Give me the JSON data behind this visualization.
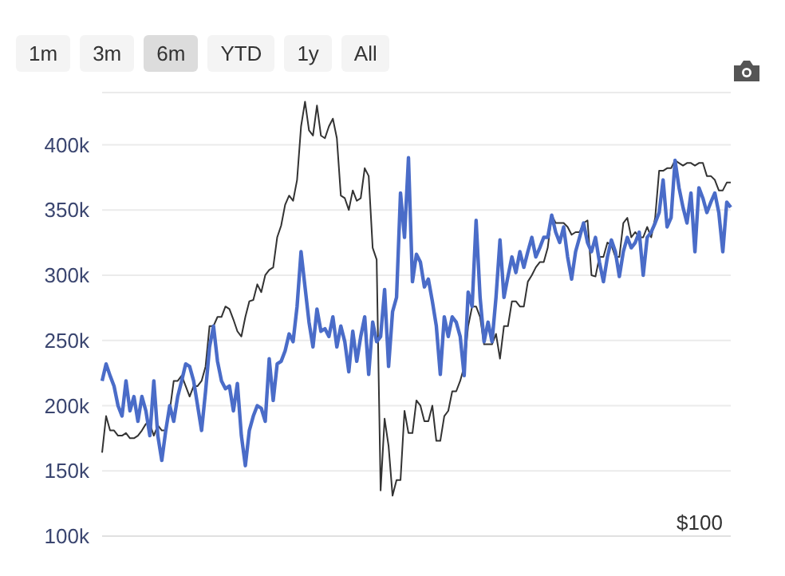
{
  "chart_data": {
    "type": "line",
    "annotations": [
      "1m",
      "3m",
      "6m",
      "YTD",
      "1y",
      "All",
      "$100"
    ],
    "categories": [
      null,
      null,
      null,
      null,
      null,
      null,
      null,
      null,
      null,
      null,
      null,
      null,
      null,
      null,
      null,
      null,
      null,
      null,
      null,
      null,
      null,
      null,
      null,
      null,
      null,
      null,
      null,
      null,
      null,
      null,
      null,
      null,
      null,
      null,
      null,
      null,
      null,
      null,
      null,
      null,
      null,
      null,
      null,
      null,
      null,
      null,
      null,
      null,
      null,
      null,
      null,
      null,
      null,
      null,
      null,
      null,
      null,
      null,
      null,
      null,
      null,
      null,
      null,
      null,
      null,
      null,
      null,
      null,
      null,
      null,
      null,
      null,
      null,
      null,
      null,
      null,
      null,
      null,
      null,
      null,
      null,
      null,
      null,
      null,
      null,
      null,
      null,
      null,
      null,
      null,
      null,
      null,
      null,
      null,
      null,
      null,
      null,
      null,
      null,
      null,
      null,
      null,
      null,
      null,
      null,
      null,
      null,
      null,
      null,
      null,
      null,
      null,
      null,
      null,
      null,
      null,
      null,
      null,
      null,
      null,
      null,
      null,
      null,
      null,
      null,
      null,
      null,
      null,
      null,
      null,
      null,
      null,
      null,
      null,
      null,
      null,
      null,
      null,
      null,
      null,
      null,
      null,
      null,
      null,
      null,
      null,
      null,
      null,
      null,
      null,
      null,
      null,
      null,
      null,
      null,
      null,
      null,
      null,
      null
    ],
    "tick_labels": "y",
    "grid": "y",
    "legend": false,
    "marker": "none",
    "line_style": "solid",
    "ylim": [
      100000,
      440000
    ],
    "yticks": [
      {
        "value": 100000,
        "label": "100k"
      },
      {
        "value": 150000,
        "label": "150k"
      },
      {
        "value": 200000,
        "label": "200k"
      },
      {
        "value": 250000,
        "label": "250k"
      },
      {
        "value": 300000,
        "label": "300k"
      },
      {
        "value": 350000,
        "label": "350k"
      },
      {
        "value": 400000,
        "label": "400k"
      }
    ],
    "series": [
      {
        "color": "#333333",
        "values": [
          164000,
          192000,
          181000,
          181000,
          177000,
          177000,
          179000,
          175000,
          175000,
          177000,
          181000,
          186000,
          186000,
          177000,
          185000,
          181000,
          181000,
          196000,
          219000,
          219000,
          223000,
          215000,
          207000,
          215000,
          215000,
          219000,
          230000,
          261000,
          261000,
          268000,
          268000,
          276000,
          274000,
          266000,
          257000,
          253000,
          268000,
          280000,
          281000,
          293000,
          287000,
          300000,
          304000,
          306000,
          329000,
          338000,
          354000,
          361000,
          357000,
          373000,
          414000,
          433000,
          411000,
          407000,
          430000,
          407000,
          405000,
          414000,
          420000,
          405000,
          361000,
          359000,
          350000,
          365000,
          357000,
          359000,
          382000,
          376000,
          321000,
          312000,
          135000,
          190000,
          169000,
          131000,
          143000,
          143000,
          196000,
          179000,
          179000,
          204000,
          200000,
          188000,
          188000,
          200000,
          173000,
          173000,
          192000,
          196000,
          211000,
          211000,
          219000,
          230000,
          261000,
          276000,
          276000,
          268000,
          247000,
          247000,
          247000,
          255000,
          236000,
          261000,
          261000,
          280000,
          280000,
          276000,
          276000,
          295000,
          300000,
          306000,
          310000,
          310000,
          321000,
          346000,
          340000,
          340000,
          340000,
          337000,
          331000,
          333000,
          333000,
          340000,
          342000,
          300000,
          299000,
          314000,
          314000,
          325000,
          323000,
          314000,
          314000,
          340000,
          344000,
          329000,
          333000,
          329000,
          329000,
          337000,
          329000,
          344000,
          380000,
          380000,
          382000,
          382000,
          388000,
          386000,
          384000,
          386000,
          386000,
          384000,
          386000,
          386000,
          376000,
          376000,
          373000,
          365000,
          365000,
          371000,
          371000
        ]
      },
      {
        "color": "#4a6cc8",
        "values": [
          219000,
          232000,
          223000,
          215000,
          200000,
          192000,
          219000,
          196000,
          207000,
          188000,
          207000,
          196000,
          177000,
          219000,
          177000,
          158000,
          181000,
          200000,
          188000,
          207000,
          219000,
          232000,
          230000,
          219000,
          200000,
          181000,
          211000,
          245000,
          261000,
          234000,
          219000,
          213000,
          215000,
          196000,
          217000,
          177000,
          154000,
          181000,
          192000,
          200000,
          198000,
          188000,
          236000,
          204000,
          232000,
          234000,
          242000,
          255000,
          249000,
          276000,
          318000,
          291000,
          264000,
          245000,
          274000,
          257000,
          259000,
          253000,
          268000,
          245000,
          261000,
          249000,
          226000,
          257000,
          234000,
          253000,
          268000,
          224000,
          264000,
          249000,
          253000,
          289000,
          230000,
          272000,
          283000,
          363000,
          329000,
          390000,
          295000,
          316000,
          310000,
          291000,
          297000,
          280000,
          261000,
          224000,
          268000,
          253000,
          268000,
          264000,
          253000,
          223000,
          287000,
          276000,
          342000,
          283000,
          249000,
          264000,
          249000,
          283000,
          327000,
          283000,
          299000,
          314000,
          302000,
          318000,
          306000,
          318000,
          329000,
          314000,
          321000,
          329000,
          329000,
          346000,
          333000,
          325000,
          337000,
          314000,
          297000,
          318000,
          329000,
          340000,
          325000,
          318000,
          329000,
          310000,
          295000,
          314000,
          327000,
          318000,
          299000,
          318000,
          329000,
          321000,
          325000,
          333000,
          300000,
          329000,
          333000,
          340000,
          348000,
          373000,
          337000,
          344000,
          388000,
          367000,
          352000,
          340000,
          363000,
          318000,
          367000,
          359000,
          348000,
          356000,
          363000,
          348000,
          318000,
          356000,
          352000
        ]
      }
    ]
  }
}
